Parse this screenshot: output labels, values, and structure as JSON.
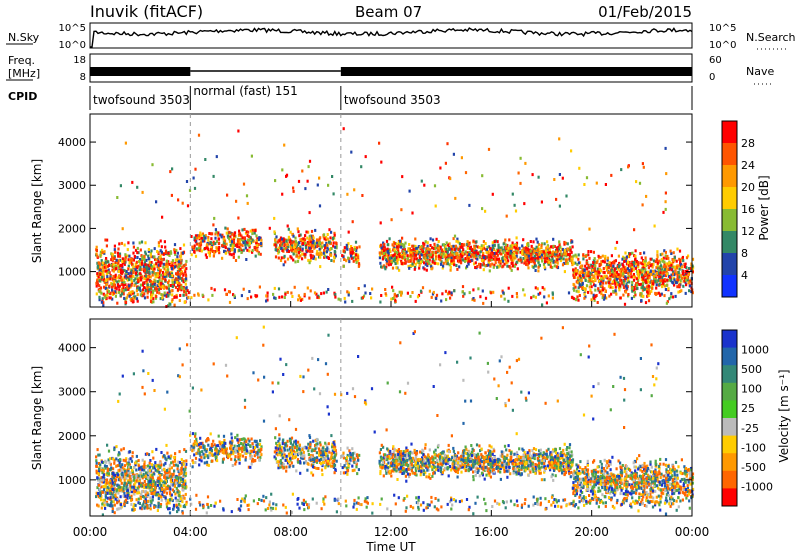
{
  "header": {
    "station": "Inuvik (fitACF)",
    "beam": "Beam 07",
    "date": "01/Feb/2015"
  },
  "noise_panel": {
    "left_label": "N.Sky",
    "right_label": "N.Search",
    "left_ticks": [
      "10^5",
      "10^0"
    ],
    "right_ticks": [
      "10^5",
      "10^0"
    ]
  },
  "freq_panel": {
    "left_label_line1": "Freq.",
    "left_label_line2": "[MHz]",
    "right_label": "Nave",
    "left_ticks": [
      "18",
      "8"
    ],
    "right_ticks": [
      "60",
      "0"
    ]
  },
  "cpid": {
    "label": "CPID",
    "segments": [
      {
        "name": "twofsound 3503",
        "start_hour": 0,
        "end_hour": 4
      },
      {
        "name": "normal (fast) 151",
        "start_hour": 4,
        "end_hour": 10
      },
      {
        "name": "twofsound 3503",
        "start_hour": 10,
        "end_hour": 24
      }
    ]
  },
  "chart_data": [
    {
      "type": "heatmap",
      "name": "power",
      "ylabel": "Slant Range [km]",
      "y_ticks": [
        1000,
        2000,
        3000,
        4000
      ],
      "ylim": [
        180,
        4650
      ],
      "colorbar_label": "Power [dB]",
      "colorbar_ticks": [
        "28",
        "24",
        "20",
        "16",
        "12",
        "8",
        "4"
      ],
      "colorbar_colors": [
        "#ff0000",
        "#ff5500",
        "#ff9900",
        "#ffcc00",
        "#88bb33",
        "#338866",
        "#2244aa",
        "#1133ff"
      ]
    },
    {
      "type": "heatmap",
      "name": "velocity",
      "ylabel": "Slant Range [km]",
      "y_ticks": [
        1000,
        2000,
        3000,
        4000
      ],
      "ylim": [
        180,
        4650
      ],
      "colorbar_label": "Velocity [m s⁻¹]",
      "colorbar_ticks": [
        "1000",
        "500",
        "100",
        "25",
        "-25",
        "-100",
        "-500",
        "-1000"
      ],
      "colorbar_colors": [
        "#1a33cc",
        "#2266aa",
        "#338877",
        "#55aa44",
        "#44cc22",
        "#bbbbbb",
        "#ffcc00",
        "#ff9900",
        "#ff6600",
        "#ff0000"
      ]
    }
  ],
  "x_axis": {
    "label": "Time UT",
    "ticks": [
      "00:00",
      "04:00",
      "08:00",
      "12:00",
      "16:00",
      "20:00",
      "00:00"
    ],
    "xlim_hours": [
      0,
      24
    ]
  }
}
